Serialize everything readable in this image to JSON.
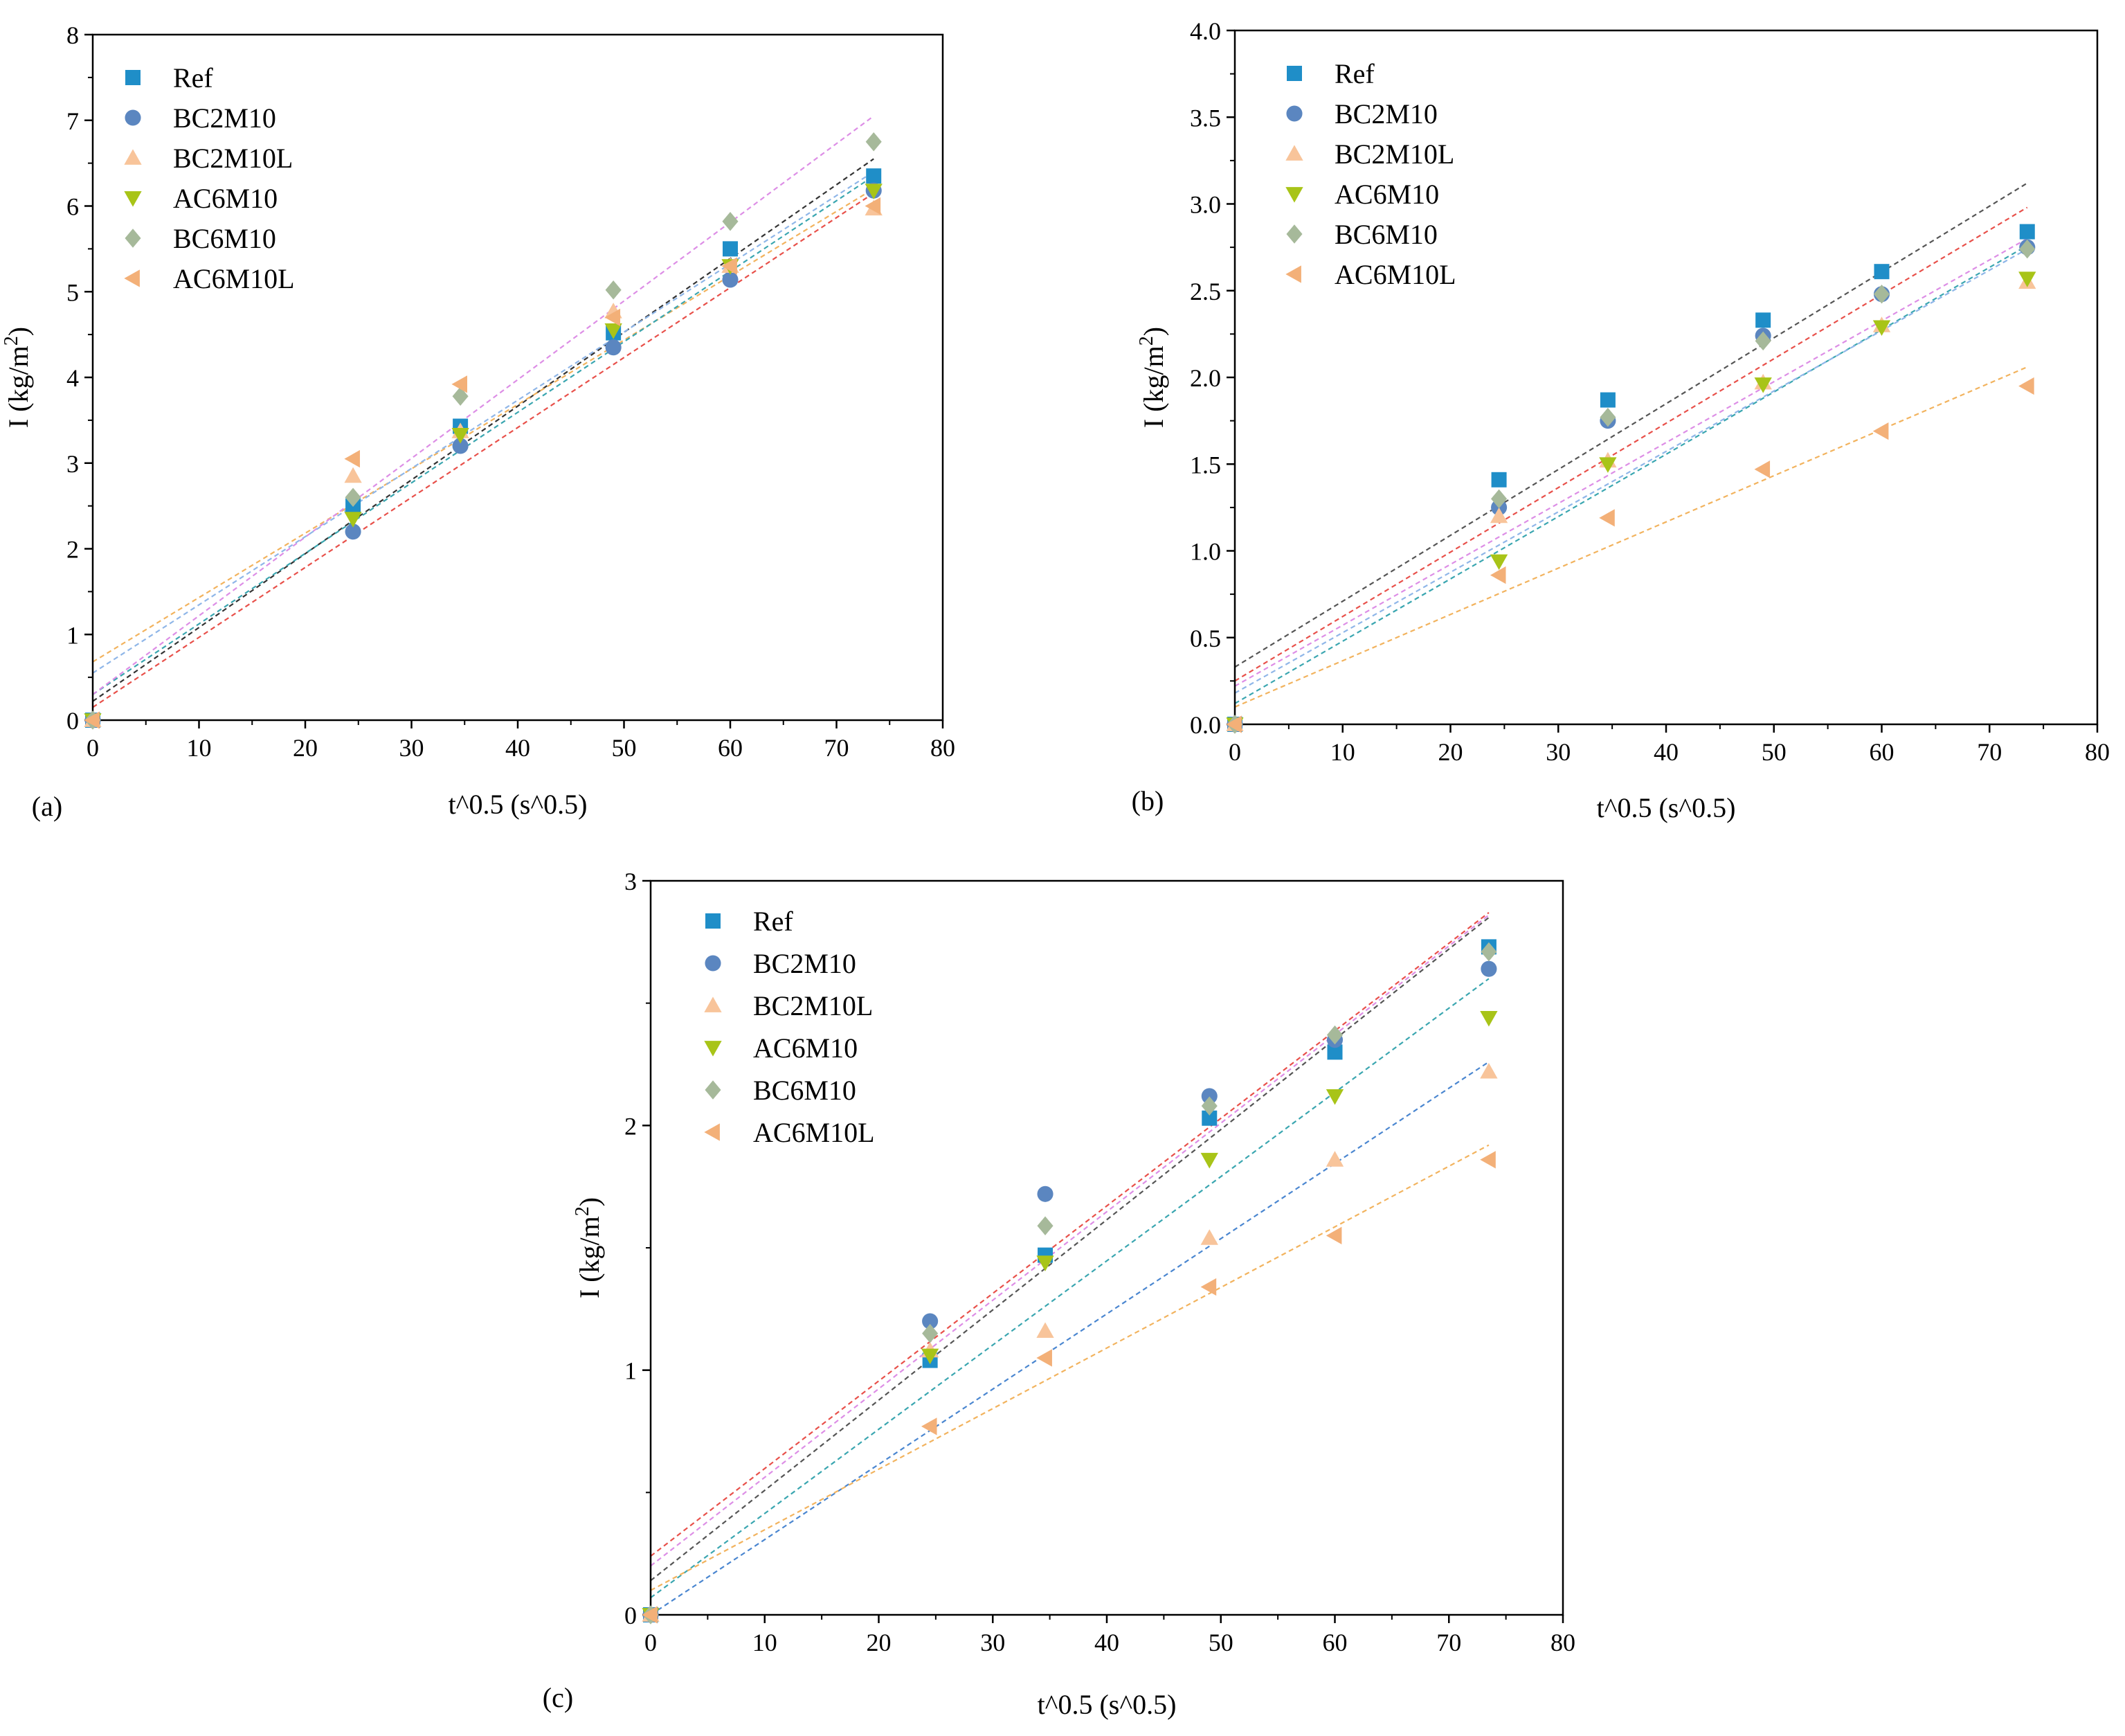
{
  "marker_styles": {
    "Ref": {
      "shape": "square",
      "color": "#1f8ec8"
    },
    "BC2M10": {
      "shape": "circle",
      "color": "#5b86c0"
    },
    "BC2M10L": {
      "shape": "triangle-up",
      "color": "#f8c49a"
    },
    "AC6M10": {
      "shape": "triangle-down",
      "color": "#a8c418"
    },
    "BC6M10": {
      "shape": "diamond",
      "color": "#a6b99a"
    },
    "AC6M10L": {
      "shape": "triangle-left",
      "color": "#f3b078"
    }
  },
  "chart_data": [
    {
      "type": "scatter",
      "panel_label": "(a)",
      "xlabel": "t^0.5 (s^0.5)",
      "ylabel": "I (kg/m2)",
      "xlim": [
        0,
        80
      ],
      "ylim": [
        0,
        8
      ],
      "xticks": [
        0,
        10,
        20,
        30,
        40,
        50,
        60,
        70,
        80
      ],
      "yticks": [
        0,
        1,
        2,
        3,
        4,
        5,
        6,
        7,
        8
      ],
      "legend_position": "top-left",
      "x": [
        0,
        24.5,
        34.6,
        49.0,
        60.0,
        73.5
      ],
      "series": [
        {
          "name": "Ref",
          "values": [
            0.0,
            2.5,
            3.43,
            4.52,
            5.5,
            6.35
          ]
        },
        {
          "name": "BC2M10",
          "values": [
            0.0,
            2.2,
            3.2,
            4.35,
            5.14,
            6.18
          ]
        },
        {
          "name": "BC2M10L",
          "values": [
            0.0,
            2.85,
            3.37,
            4.77,
            5.3,
            5.97
          ]
        },
        {
          "name": "AC6M10",
          "values": [
            0.0,
            2.35,
            3.33,
            4.55,
            5.3,
            6.18
          ]
        },
        {
          "name": "BC6M10",
          "values": [
            0.0,
            2.6,
            3.78,
            5.02,
            5.82,
            6.75
          ]
        },
        {
          "name": "AC6M10L",
          "values": [
            0.0,
            3.05,
            3.92,
            4.7,
            5.3,
            6.0
          ]
        }
      ],
      "fit_lines": [
        {
          "x0": 0,
          "y0": 0.22,
          "x1": 73.5,
          "y1": 6.55,
          "color": "#333333"
        },
        {
          "x0": 0,
          "y0": 0.15,
          "x1": 73.5,
          "y1": 6.15,
          "color": "#e8504a"
        },
        {
          "x0": 0,
          "y0": 0.68,
          "x1": 73.5,
          "y1": 6.2,
          "color": "#f2b35e"
        },
        {
          "x0": 0,
          "y0": 0.3,
          "x1": 73.5,
          "y1": 6.35,
          "color": "#3aa6b0"
        },
        {
          "x0": 0,
          "y0": 0.3,
          "x1": 73.5,
          "y1": 7.05,
          "color": "#dd8ee6"
        },
        {
          "x0": 0,
          "y0": 0.55,
          "x1": 73.5,
          "y1": 6.4,
          "color": "#8fb6e8"
        }
      ]
    },
    {
      "type": "scatter",
      "panel_label": "(b)",
      "xlabel": "t^0.5 (s^0.5)",
      "ylabel": "I (kg/m2)",
      "xlim": [
        0,
        80
      ],
      "ylim": [
        0,
        4.0
      ],
      "xticks": [
        0,
        10,
        20,
        30,
        40,
        50,
        60,
        70,
        80
      ],
      "yticks": [
        "0.0",
        "0.5",
        "1.0",
        "1.5",
        "2.0",
        "2.5",
        "3.0",
        "3.5",
        "4.0"
      ],
      "legend_position": "top-left",
      "x": [
        0,
        24.5,
        34.6,
        49.0,
        60.0,
        73.5
      ],
      "series": [
        {
          "name": "Ref",
          "values": [
            0.0,
            1.41,
            1.87,
            2.33,
            2.61,
            2.84
          ]
        },
        {
          "name": "BC2M10",
          "values": [
            0.0,
            1.25,
            1.75,
            2.24,
            2.48,
            2.75
          ]
        },
        {
          "name": "BC2M10L",
          "values": [
            0.0,
            1.2,
            1.52,
            1.97,
            2.3,
            2.55
          ]
        },
        {
          "name": "AC6M10",
          "values": [
            0.0,
            0.94,
            1.5,
            1.96,
            2.29,
            2.57
          ]
        },
        {
          "name": "BC6M10",
          "values": [
            0.0,
            1.3,
            1.77,
            2.21,
            2.48,
            2.74
          ]
        },
        {
          "name": "AC6M10L",
          "values": [
            0.0,
            0.86,
            1.19,
            1.47,
            1.69,
            1.95
          ]
        }
      ],
      "fit_lines": [
        {
          "x0": 0,
          "y0": 0.33,
          "x1": 73.5,
          "y1": 3.12,
          "color": "#555555"
        },
        {
          "x0": 0,
          "y0": 0.25,
          "x1": 73.5,
          "y1": 2.98,
          "color": "#e8504a"
        },
        {
          "x0": 0,
          "y0": 0.1,
          "x1": 73.5,
          "y1": 2.06,
          "color": "#f2b35e"
        },
        {
          "x0": 0,
          "y0": 0.12,
          "x1": 73.5,
          "y1": 2.76,
          "color": "#3aa6b0"
        },
        {
          "x0": 0,
          "y0": 0.22,
          "x1": 73.5,
          "y1": 2.8,
          "color": "#dd8ee6"
        },
        {
          "x0": 0,
          "y0": 0.18,
          "x1": 73.5,
          "y1": 2.74,
          "color": "#8fb6e8"
        }
      ]
    },
    {
      "type": "scatter",
      "panel_label": "(c)",
      "xlabel": "t^0.5 (s^0.5)",
      "ylabel": "I (kg/m2)",
      "xlim": [
        0,
        80
      ],
      "ylim": [
        0,
        3
      ],
      "xticks": [
        0,
        10,
        20,
        30,
        40,
        50,
        60,
        70,
        80
      ],
      "yticks": [
        0,
        1,
        2,
        3
      ],
      "legend_position": "top-left",
      "x": [
        0,
        24.5,
        34.6,
        49.0,
        60.0,
        73.5
      ],
      "series": [
        {
          "name": "Ref",
          "values": [
            0.0,
            1.04,
            1.47,
            2.03,
            2.3,
            2.73
          ]
        },
        {
          "name": "BC2M10",
          "values": [
            0.0,
            1.2,
            1.72,
            2.12,
            2.35,
            2.64
          ]
        },
        {
          "name": "BC2M10L",
          "values": [
            0.0,
            1.08,
            1.16,
            1.54,
            1.86,
            2.22
          ]
        },
        {
          "name": "AC6M10",
          "values": [
            0.0,
            1.06,
            1.44,
            1.86,
            2.12,
            2.44
          ]
        },
        {
          "name": "BC6M10",
          "values": [
            0.0,
            1.15,
            1.59,
            2.08,
            2.37,
            2.71
          ]
        },
        {
          "name": "AC6M10L",
          "values": [
            0.0,
            0.77,
            1.05,
            1.34,
            1.55,
            1.86
          ]
        }
      ],
      "fit_lines": [
        {
          "x0": 0,
          "y0": 0.24,
          "x1": 73.5,
          "y1": 2.87,
          "color": "#e8504a"
        },
        {
          "x0": 0,
          "y0": 0.14,
          "x1": 73.5,
          "y1": 2.85,
          "color": "#555555"
        },
        {
          "x0": 0,
          "y0": 0.2,
          "x1": 73.5,
          "y1": 2.86,
          "color": "#dd8ee6"
        },
        {
          "x0": 0,
          "y0": 0.07,
          "x1": 73.5,
          "y1": 2.6,
          "color": "#3aa6b0"
        },
        {
          "x0": 0,
          "y0": 0.0,
          "x1": 73.5,
          "y1": 2.26,
          "color": "#4a86d0"
        },
        {
          "x0": 0,
          "y0": 0.1,
          "x1": 73.5,
          "y1": 1.92,
          "color": "#f2b35e"
        }
      ]
    }
  ]
}
